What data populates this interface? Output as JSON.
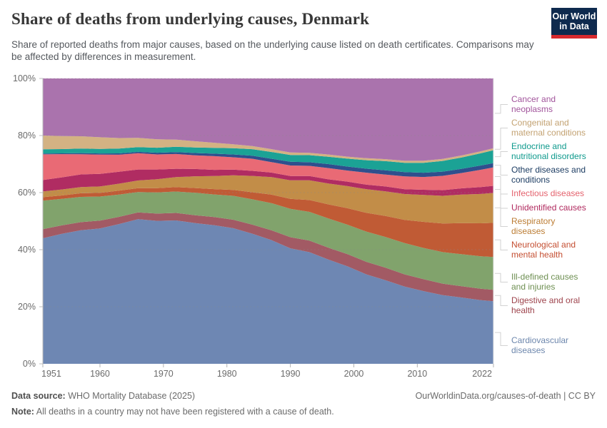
{
  "header": {
    "title": "Share of deaths from underlying causes, Denmark",
    "subtitle": "Share of reported deaths from major causes, based on the underlying cause listed on death certificates. Comparisons may be affected by differences in measurement.",
    "logo": {
      "line1": "Our World",
      "line2": "in Data"
    }
  },
  "footer": {
    "datasource_label": "Data source:",
    "datasource_value": "WHO Mortality Database (2025)",
    "note_label": "Note:",
    "note_value": "All deaths in a country may not have been registered with a cause of death.",
    "link": "OurWorldinData.org/causes-of-death | CC BY"
  },
  "axes": {
    "y_ticks": [
      {
        "v": 0,
        "label": "0%"
      },
      {
        "v": 20,
        "label": "20%"
      },
      {
        "v": 40,
        "label": "40%"
      },
      {
        "v": 60,
        "label": "60%"
      },
      {
        "v": 80,
        "label": "80%"
      },
      {
        "v": 100,
        "label": "100%"
      }
    ],
    "x_ticks": [
      {
        "v": 1951,
        "label": "1951"
      },
      {
        "v": 1960,
        "label": "1960"
      },
      {
        "v": 1970,
        "label": "1970"
      },
      {
        "v": 1980,
        "label": "1980"
      },
      {
        "v": 1990,
        "label": "1990"
      },
      {
        "v": 2000,
        "label": "2000"
      },
      {
        "v": 2010,
        "label": "2010"
      },
      {
        "v": 2022,
        "label": "2022"
      }
    ]
  },
  "legend": {
    "items": [
      {
        "series": "cancer",
        "lines": [
          "Cancer and",
          "neoplasms"
        ],
        "color": "#a2559c"
      },
      {
        "series": "congenital",
        "lines": [
          "Congenital and",
          "maternal conditions"
        ],
        "color": "#c3a272"
      },
      {
        "series": "endocrine",
        "lines": [
          "Endocrine and",
          "nutritional disorders"
        ],
        "color": "#0f9a8d"
      },
      {
        "series": "other",
        "lines": [
          "Other diseases and",
          "conditions"
        ],
        "color": "#1d3d63"
      },
      {
        "series": "infectious",
        "lines": [
          "Infectious diseases"
        ],
        "color": "#e4626d"
      },
      {
        "series": "unidentified",
        "lines": [
          "Unidentified causes"
        ],
        "color": "#b0295e"
      },
      {
        "series": "respiratory",
        "lines": [
          "Respiratory",
          "diseases"
        ],
        "color": "#bc7d34"
      },
      {
        "series": "neurological",
        "lines": [
          "Neurological and",
          "mental health"
        ],
        "color": "#c44e31"
      },
      {
        "series": "illdefined",
        "lines": [
          "Ill-defined causes",
          "and injuries"
        ],
        "color": "#6e8f52"
      },
      {
        "series": "digestive",
        "lines": [
          "Digestive and oral",
          "health"
        ],
        "color": "#9e444d"
      },
      {
        "series": "cardiovascular",
        "lines": [
          "Cardiovascular",
          "diseases"
        ],
        "color": "#6d87ad"
      }
    ]
  },
  "chart_data": {
    "type": "area",
    "stacked": true,
    "unit": "%",
    "title": "Share of deaths from underlying causes, Denmark",
    "xlabel": "",
    "ylabel": "Share of deaths",
    "ylim": [
      0,
      100
    ],
    "grid": true,
    "legend_position": "right",
    "x": [
      1951,
      1954,
      1957,
      1960,
      1963,
      1966,
      1969,
      1972,
      1975,
      1978,
      1981,
      1984,
      1987,
      1990,
      1993,
      1996,
      1999,
      2002,
      2005,
      2008,
      2011,
      2014,
      2017,
      2020,
      2022
    ],
    "series": [
      {
        "name": "cardiovascular",
        "label": "Cardiovascular diseases",
        "color": "#6e87b3",
        "values": [
          44,
          46,
          47.6,
          48.4,
          50.2,
          52.6,
          51.2,
          51.6,
          50.2,
          49.6,
          48.2,
          46.2,
          43.8,
          40.6,
          39.6,
          37,
          34.4,
          31.4,
          29.4,
          27.2,
          25.6,
          24.4,
          23.4,
          22.4,
          22
        ]
      },
      {
        "name": "digestive",
        "label": "Digestive and oral health",
        "color": "#a25a64",
        "values": [
          3.2,
          3,
          2.9,
          2.8,
          2.6,
          2.5,
          2.6,
          2.7,
          2.8,
          2.9,
          3,
          3.2,
          3.5,
          3.9,
          4.1,
          4.2,
          4.3,
          4.4,
          4.4,
          4.3,
          4.2,
          4.1,
          4,
          4,
          4
        ]
      },
      {
        "name": "illdefined",
        "label": "Ill-defined causes and injuries",
        "color": "#81a36c",
        "values": [
          10,
          9.4,
          9,
          8.6,
          8,
          7.4,
          7.6,
          7.7,
          8,
          8.1,
          8.5,
          9,
          9.6,
          10,
          10.2,
          10.4,
          10.4,
          10.6,
          10.8,
          11,
          11,
          11.2,
          11.3,
          11.4,
          11.5
        ]
      },
      {
        "name": "neurological",
        "label": "Neurological and mental health",
        "color": "#c05b35",
        "values": [
          1.2,
          1.2,
          1.3,
          1.3,
          1.4,
          1.4,
          1.5,
          1.6,
          1.7,
          1.9,
          2.1,
          2.5,
          3,
          3.5,
          4.2,
          5,
          5.8,
          6.6,
          7.4,
          8.2,
          9.2,
          10.2,
          11,
          11.6,
          12
        ]
      },
      {
        "name": "respiratory",
        "label": "Respiratory diseases",
        "color": "#c28d48",
        "values": [
          2,
          2.1,
          2.2,
          2.3,
          2.5,
          2.8,
          3.2,
          3.6,
          4.2,
          4.7,
          5.2,
          5.8,
          6.2,
          6.5,
          7,
          7.4,
          7.8,
          8.3,
          8.7,
          9.1,
          9.5,
          9.8,
          10.1,
          10.3,
          10.5
        ]
      },
      {
        "name": "unidentified",
        "label": "Unidentified causes",
        "color": "#b02c62",
        "values": [
          4,
          4.3,
          4.5,
          4.5,
          4.3,
          4,
          3.5,
          3,
          2.6,
          2.2,
          2,
          1.8,
          1.6,
          1.5,
          1.5,
          1.5,
          1.6,
          1.6,
          1.7,
          1.7,
          1.8,
          2,
          2.2,
          2.4,
          2.5
        ]
      },
      {
        "name": "infectious",
        "label": "Infectious diseases",
        "color": "#e96a75",
        "values": [
          9,
          8.2,
          7.2,
          6.9,
          6.1,
          5.9,
          5.4,
          5.3,
          4.9,
          4.9,
          4.4,
          4.3,
          3.7,
          3.7,
          3.6,
          4,
          3.9,
          4.2,
          4.2,
          4.5,
          4.5,
          5.1,
          5.4,
          6.1,
          6.5
        ]
      },
      {
        "name": "other",
        "label": "Other diseases and conditions",
        "color": "#2f4f8d",
        "values": [
          0.3,
          0.3,
          0.4,
          0.4,
          0.5,
          0.5,
          0.6,
          0.7,
          0.8,
          0.9,
          1,
          1.1,
          1.2,
          1.3,
          1.3,
          1.4,
          1.4,
          1.4,
          1.5,
          1.5,
          1.5,
          1.5,
          1.5,
          1.5,
          1.5
        ]
      },
      {
        "name": "endocrine",
        "label": "Endocrine and nutritional disorders",
        "color": "#1ba295",
        "values": [
          1.5,
          1.5,
          1.6,
          1.6,
          1.7,
          1.7,
          1.8,
          1.9,
          2,
          2.1,
          2.2,
          2.3,
          2.4,
          2.4,
          2.5,
          2.6,
          2.8,
          3,
          3.2,
          3.3,
          3.5,
          3.8,
          4,
          4.3,
          4.5
        ]
      },
      {
        "name": "congenital",
        "label": "Congenital and maternal conditions",
        "color": "#d3b283",
        "values": [
          4.8,
          4.6,
          4.4,
          4.2,
          3.8,
          3.4,
          3,
          2.6,
          2.2,
          1.8,
          1.4,
          1.1,
          1,
          0.9,
          0.8,
          0.8,
          0.7,
          0.7,
          0.7,
          0.7,
          0.7,
          0.7,
          0.7,
          0.7,
          0.7
        ]
      },
      {
        "name": "cancer",
        "label": "Cancer and neoplasms",
        "color": "#aa73ad",
        "values": [
          20,
          20.4,
          20.6,
          21,
          21.4,
          21.6,
          21.8,
          22,
          22.4,
          23,
          23.4,
          24,
          25,
          26,
          26.4,
          27,
          27.6,
          28,
          28.4,
          29,
          29,
          28.6,
          27.2,
          25.6,
          24.5
        ]
      }
    ]
  }
}
